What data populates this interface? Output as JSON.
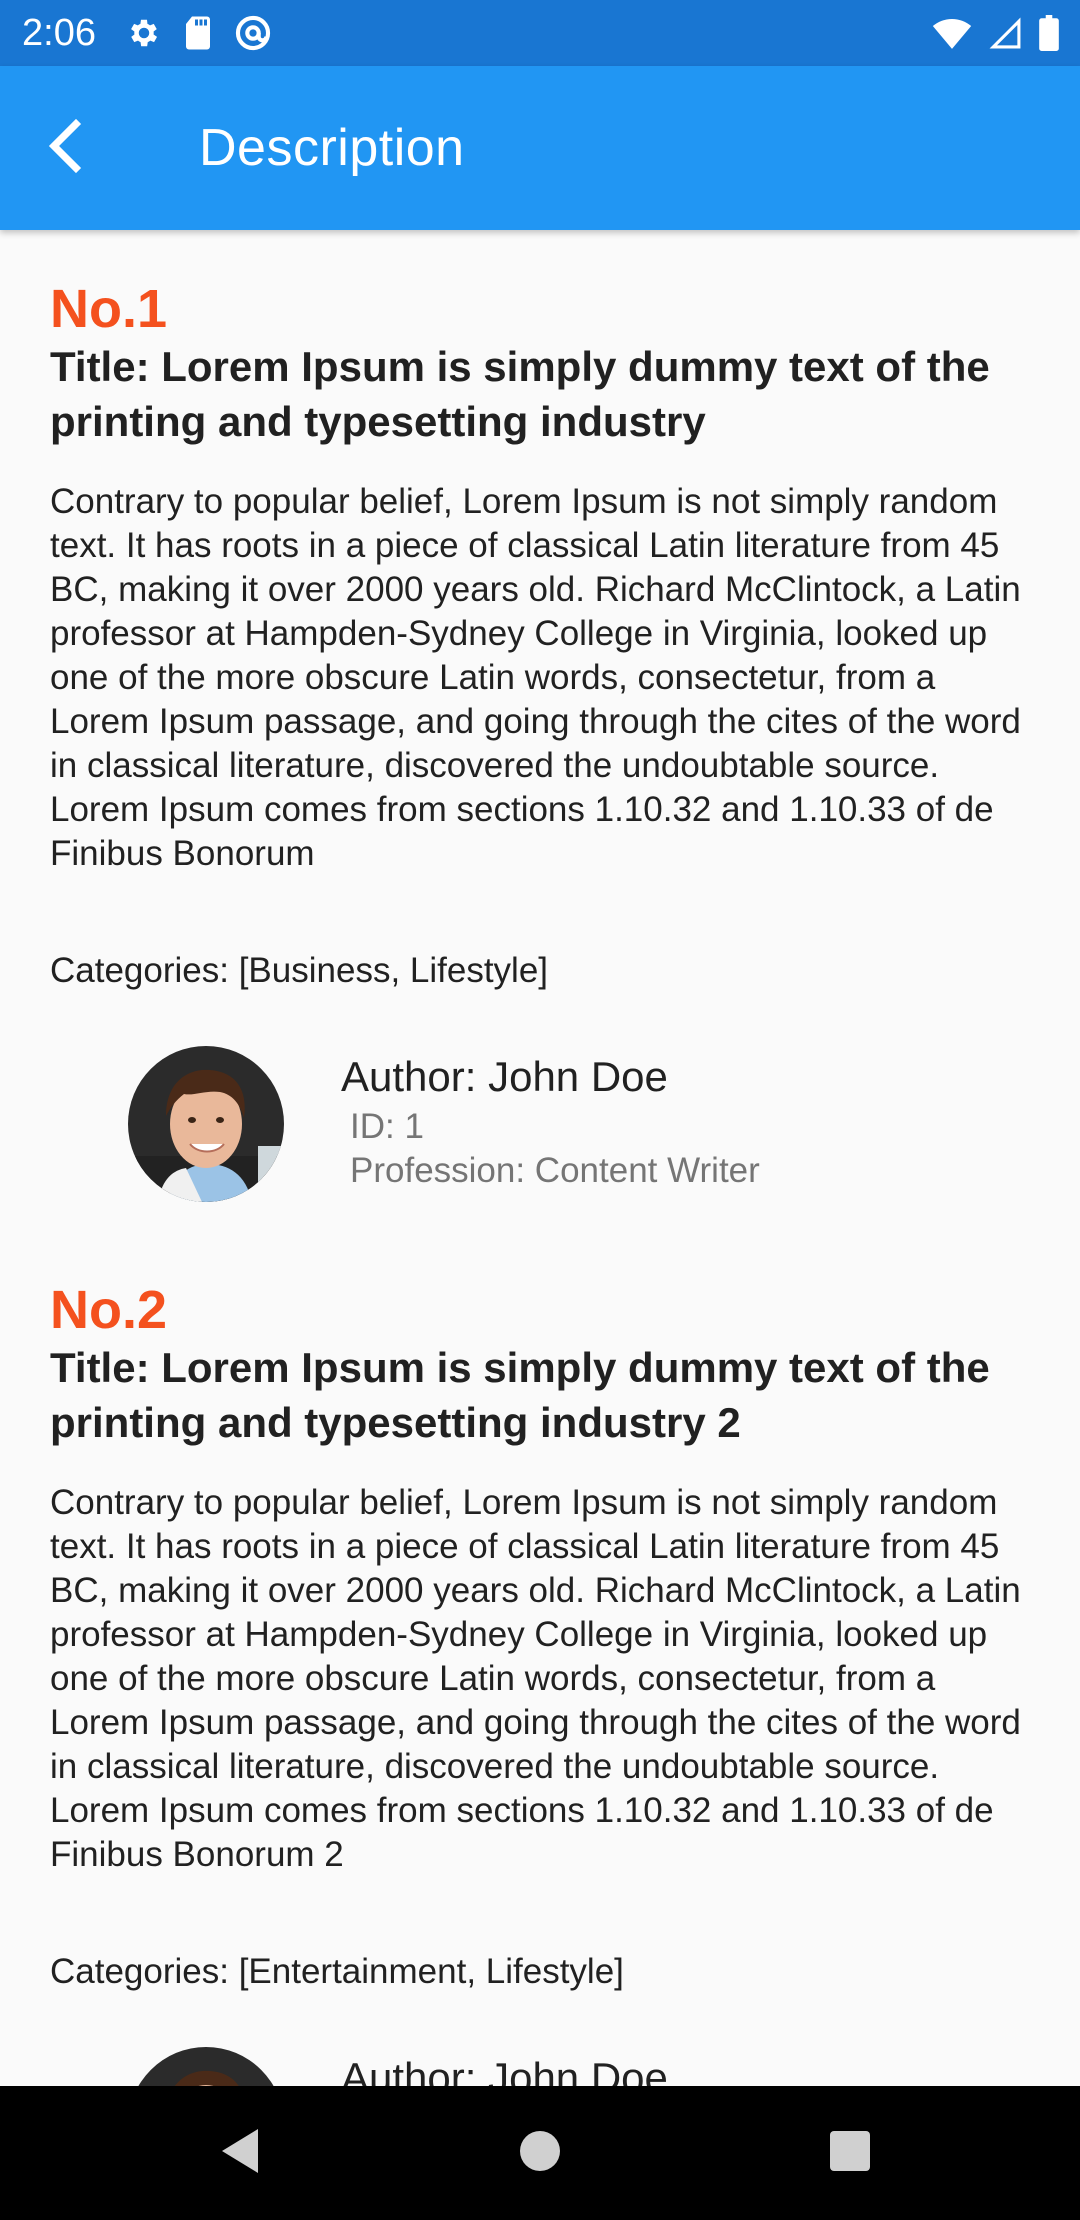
{
  "status_bar": {
    "time": "2:06",
    "left_icons": [
      "gear-icon",
      "sd-card-icon",
      "at-sign-icon"
    ],
    "right_icons": [
      "wifi-icon",
      "signal-icon",
      "battery-icon"
    ]
  },
  "app_bar": {
    "back_icon": "chevron-left-icon",
    "title": "Description"
  },
  "posts": [
    {
      "number": "No.1",
      "title": "Title: Lorem Ipsum is simply dummy text of the printing and typesetting industry",
      "body": "Contrary to popular belief, Lorem Ipsum is not simply random text. It has roots in a piece of classical Latin literature from 45 BC, making it over 2000 years old. Richard McClintock, a Latin professor at Hampden-Sydney College in Virginia, looked up one of the more obscure Latin words, consectetur, from a Lorem Ipsum passage, and going through the cites of the word in classical literature, discovered the undoubtable source. Lorem Ipsum comes from sections 1.10.32 and 1.10.33 of de Finibus Bonorum",
      "categories": "Categories: [Business, Lifestyle]",
      "author": {
        "name": "Author: John Doe",
        "id": "ID: 1",
        "profession": "Profession: Content Writer"
      }
    },
    {
      "number": "No.2",
      "title": "Title: Lorem Ipsum is simply dummy text of the printing and typesetting industry 2",
      "body": "Contrary to popular belief, Lorem Ipsum is not simply random text. It has roots in a piece of classical Latin literature from 45 BC, making it over 2000 years old. Richard McClintock, a Latin professor at Hampden-Sydney College in Virginia, looked up one of the more obscure Latin words, consectetur, from a Lorem Ipsum passage, and going through the cites of the word in classical literature, discovered the undoubtable source. Lorem Ipsum comes from sections 1.10.32 and 1.10.33 of de Finibus Bonorum 2",
      "categories": "Categories: [Entertainment, Lifestyle]",
      "author": {
        "name": "Author: John Doe"
      }
    }
  ],
  "nav_bar": {
    "icons": [
      "nav-back-icon",
      "nav-home-icon",
      "nav-recents-icon"
    ]
  },
  "colors": {
    "status_bar": "#1976d2",
    "app_bar": "#2196f3",
    "post_number": "#f4511e",
    "text_primary": "#212121",
    "text_secondary": "#757575",
    "background": "#fafafa",
    "nav_bar": "#000000"
  }
}
